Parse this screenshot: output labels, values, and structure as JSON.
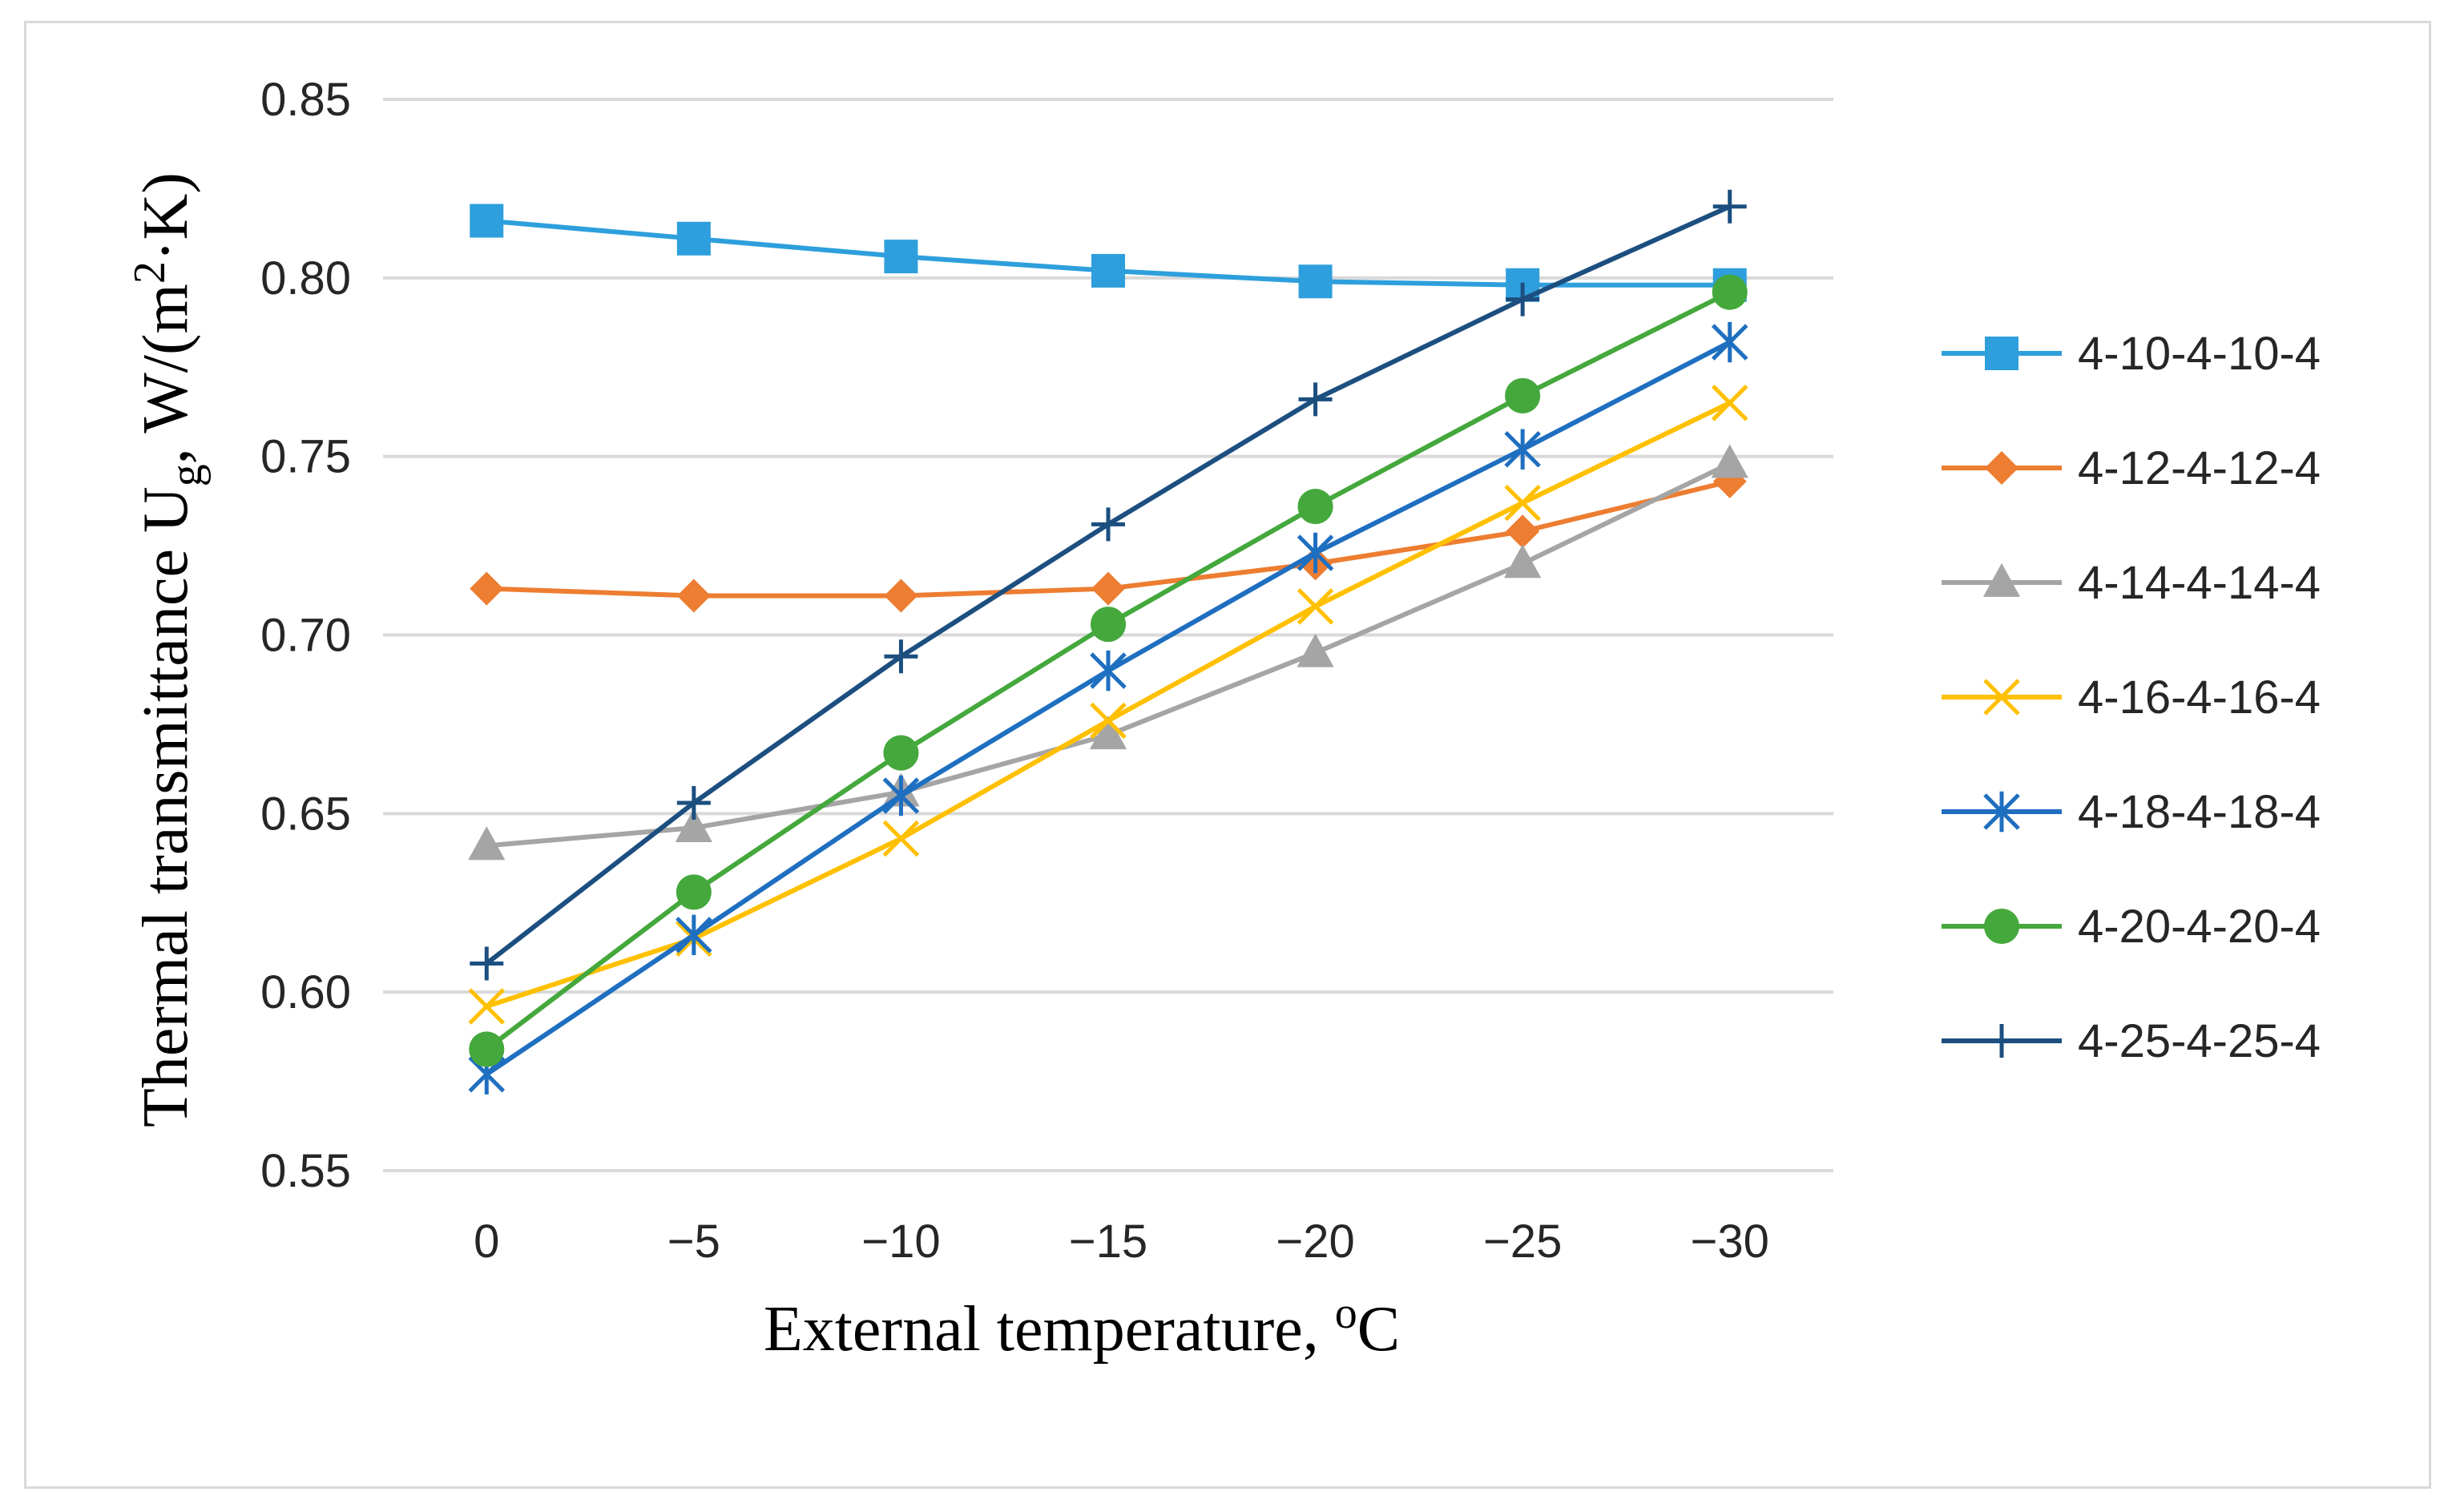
{
  "chart_data": {
    "type": "line",
    "title": "",
    "xlabel": {
      "main": "External temperature, ",
      "sup": "o",
      "unit": "C"
    },
    "ylabel": {
      "part1": "Thermal transmittance U",
      "sub": "g",
      "part2": ", W/(m",
      "sup": "2",
      "part3": "·K)"
    },
    "categories": [
      "0",
      "−5",
      "−10",
      "−15",
      "−20",
      "−25",
      "−30"
    ],
    "ylim": [
      0.55,
      0.85
    ],
    "yticks": [
      "0.55",
      "0.60",
      "0.65",
      "0.70",
      "0.75",
      "0.80",
      "0.85"
    ],
    "grid": "horizontal",
    "legend_position": "right",
    "series": [
      {
        "name": "4-10-4-10-4",
        "color": "#2e9fdc",
        "marker": "square",
        "values": [
          0.816,
          0.811,
          0.806,
          0.802,
          0.799,
          0.798,
          0.798
        ]
      },
      {
        "name": "4-12-4-12-4",
        "color": "#ed7d31",
        "marker": "diamond",
        "values": [
          0.713,
          0.711,
          0.711,
          0.713,
          0.72,
          0.729,
          0.743
        ]
      },
      {
        "name": "4-14-4-14-4",
        "color": "#a5a5a5",
        "marker": "triangle",
        "values": [
          0.641,
          0.646,
          0.656,
          0.672,
          0.695,
          0.72,
          0.748
        ]
      },
      {
        "name": "4-16-4-16-4",
        "color": "#ffc000",
        "marker": "x",
        "values": [
          0.596,
          0.615,
          0.643,
          0.676,
          0.708,
          0.737,
          0.765
        ]
      },
      {
        "name": "4-18-4-18-4",
        "color": "#1f6fc0",
        "marker": "star",
        "values": [
          0.577,
          0.616,
          0.655,
          0.69,
          0.723,
          0.752,
          0.782
        ]
      },
      {
        "name": "4-20-4-20-4",
        "color": "#44a83c",
        "marker": "circle",
        "values": [
          0.584,
          0.628,
          0.667,
          0.703,
          0.736,
          0.767,
          0.796
        ]
      },
      {
        "name": "4-25-4-25-4",
        "color": "#1c4f80",
        "marker": "plus",
        "values": [
          0.608,
          0.653,
          0.694,
          0.731,
          0.766,
          0.794,
          0.82
        ]
      }
    ]
  }
}
